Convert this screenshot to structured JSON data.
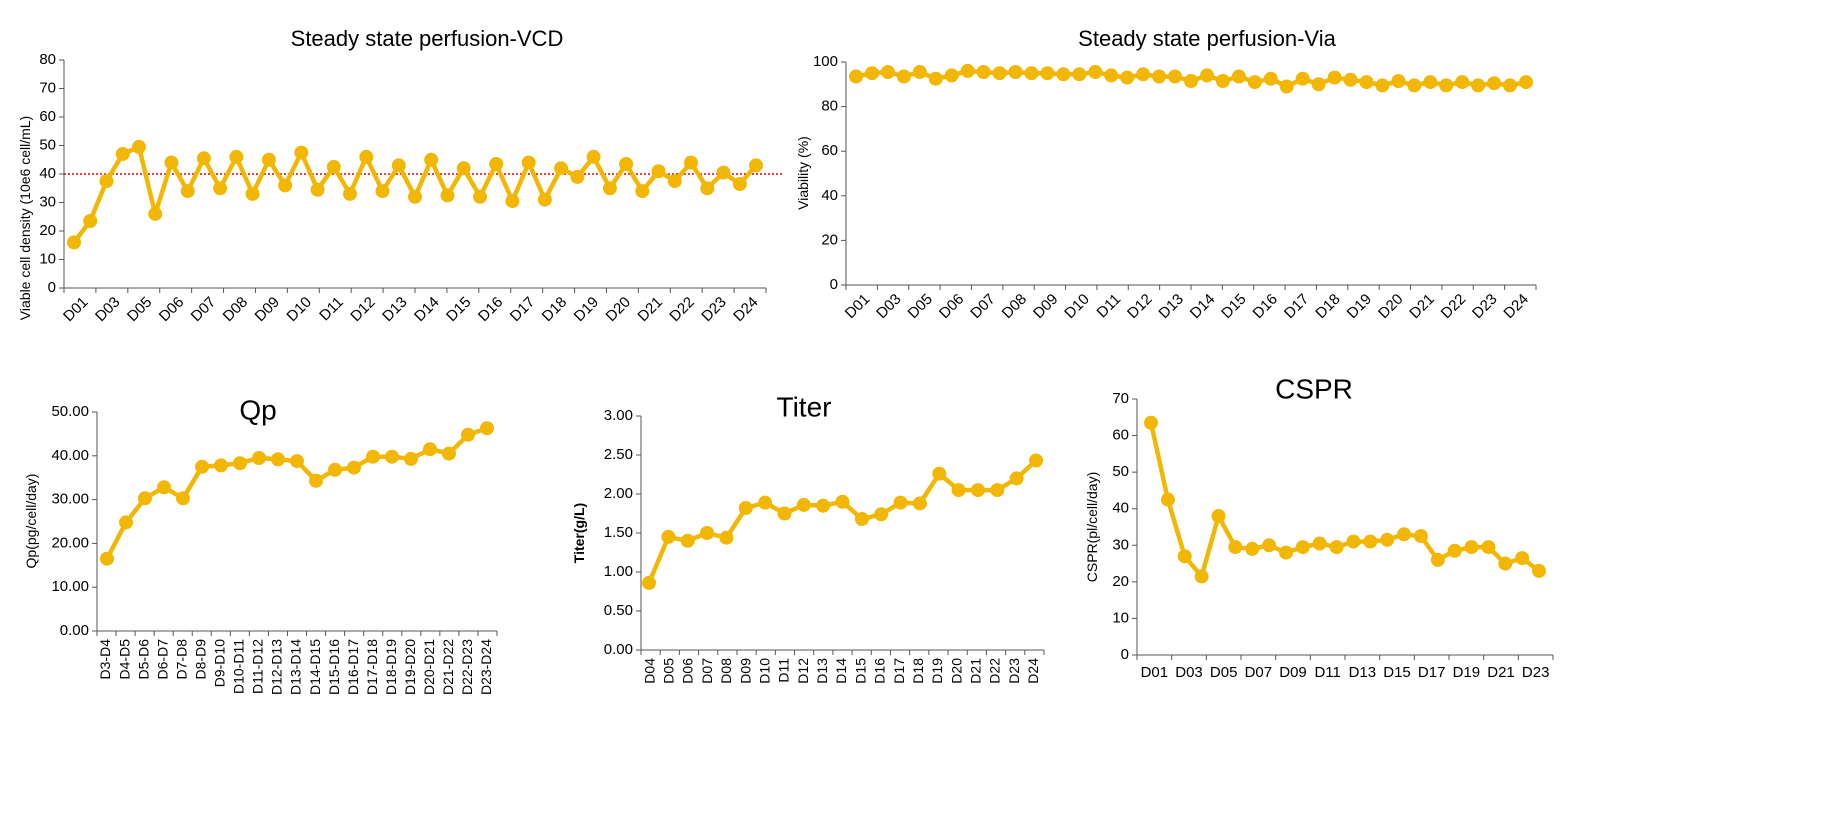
{
  "charts": {
    "accent": "#F2B705",
    "ref_color": "#e00000"
  },
  "chart_data": [
    {
      "id": "vcd",
      "type": "line",
      "title": "Steady state perfusion-VCD",
      "xlabel": "",
      "ylabel": "Viable cell density (10e6 cell/mL)",
      "ylim": [
        0,
        80
      ],
      "yticks": [
        "0",
        "10",
        "20",
        "30",
        "40",
        "50",
        "60",
        "70",
        "80"
      ],
      "tick_labels": [
        "D01",
        "D03",
        "D05",
        "D06",
        "D07",
        "D08",
        "D09",
        "D10",
        "D11",
        "D12",
        "D13",
        "D14",
        "D15",
        "D16",
        "D17",
        "D18",
        "D19",
        "D20",
        "D21",
        "D22",
        "D23",
        "D24"
      ],
      "reference_line": 40,
      "values": [
        16,
        23.5,
        37.5,
        47,
        49.5,
        26,
        44,
        34,
        45.5,
        35,
        46,
        33,
        45,
        36,
        47.5,
        34.5,
        42.5,
        33,
        46,
        34,
        43,
        32,
        45,
        32.5,
        42,
        32,
        43.5,
        30.5,
        44,
        31,
        42,
        39,
        46,
        35,
        43.5,
        34,
        41,
        37.5,
        44,
        35,
        40.5,
        36.5,
        43
      ]
    },
    {
      "id": "via",
      "type": "line",
      "title": "Steady state perfusion-Via",
      "xlabel": "",
      "ylabel": "Viability (%)",
      "ylim": [
        0,
        100
      ],
      "yticks": [
        "0",
        "20",
        "40",
        "60",
        "80",
        "100"
      ],
      "tick_labels": [
        "D01",
        "D03",
        "D05",
        "D06",
        "D07",
        "D08",
        "D09",
        "D10",
        "D11",
        "D12",
        "D13",
        "D14",
        "D15",
        "D16",
        "D17",
        "D18",
        "D19",
        "D20",
        "D21",
        "D22",
        "D23",
        "D24"
      ],
      "values": [
        93.5,
        95,
        95.5,
        93.5,
        95.5,
        92.5,
        94,
        96,
        95.5,
        95,
        95.5,
        95,
        95,
        94.5,
        94.5,
        95.5,
        94,
        93,
        94.5,
        93.5,
        93.5,
        91.5,
        94,
        91.5,
        93.5,
        91,
        92.5,
        89,
        92.5,
        90,
        93,
        92,
        91,
        89.5,
        91.5,
        89.5,
        91,
        89.5,
        91,
        89.5,
        90.5,
        89.5,
        91
      ]
    },
    {
      "id": "qp",
      "type": "line",
      "title": "Qp",
      "xlabel": "",
      "ylabel": "Qp(pg/cell/day)",
      "ylim": [
        0,
        50
      ],
      "yticks": [
        "0.00",
        "10.00",
        "20.00",
        "30.00",
        "40.00",
        "50.00"
      ],
      "tick_labels": [
        "D3-D4",
        "D4-D5",
        "D5-D6",
        "D6-D7",
        "D7-D8",
        "D8-D9",
        "D9-D10",
        "D10-D11",
        "D11-D12",
        "D12-D13",
        "D13-D14",
        "D14-D15",
        "D15-D16",
        "D16-D17",
        "D17-D18",
        "D18-D19",
        "D19-D20",
        "D20-D21",
        "D21-D22",
        "D22-D23",
        "D23-D24"
      ],
      "values": [
        16.5,
        24.8,
        30.3,
        32.8,
        30.3,
        37.5,
        37.8,
        38.3,
        39.5,
        39.2,
        38.8,
        34.3,
        36.8,
        37.3,
        39.8,
        39.8,
        39.3,
        41.5,
        40.5,
        44.8,
        46.3
      ]
    },
    {
      "id": "titer",
      "type": "line",
      "title": "Titer",
      "xlabel": "",
      "ylabel": "Titer(g/L)",
      "ylim": [
        0,
        3
      ],
      "yticks": [
        "0.00",
        "0.50",
        "1.00",
        "1.50",
        "2.00",
        "2.50",
        "3.00"
      ],
      "tick_labels": [
        "D04",
        "D05",
        "D06",
        "D07",
        "D08",
        "D09",
        "D10",
        "D11",
        "D12",
        "D13",
        "D14",
        "D15",
        "D16",
        "D17",
        "D18",
        "D19",
        "D20",
        "D21",
        "D22",
        "D23",
        "D24"
      ],
      "values": [
        0.86,
        1.45,
        1.4,
        1.5,
        1.44,
        1.82,
        1.89,
        1.75,
        1.86,
        1.85,
        1.9,
        1.68,
        1.74,
        1.89,
        1.88,
        2.26,
        2.05,
        2.05,
        2.05,
        2.2,
        2.43
      ]
    },
    {
      "id": "cspr",
      "type": "line",
      "title": "CSPR",
      "xlabel": "",
      "ylabel": "CSPR(pl/cell/day)",
      "ylim": [
        0,
        70
      ],
      "yticks": [
        "0",
        "10",
        "20",
        "30",
        "40",
        "50",
        "60",
        "70"
      ],
      "tick_labels": [
        "D01",
        "D03",
        "D05",
        "D07",
        "D09",
        "D11",
        "D13",
        "D15",
        "D17",
        "D19",
        "D21",
        "D23"
      ],
      "values": [
        63.5,
        42.5,
        27,
        21.5,
        38,
        29.5,
        29,
        30,
        28,
        29.5,
        30.5,
        29.5,
        31,
        31,
        31.5,
        33,
        32.5,
        26,
        28.5,
        29.5,
        29.5,
        25,
        26.5,
        23
      ]
    }
  ]
}
